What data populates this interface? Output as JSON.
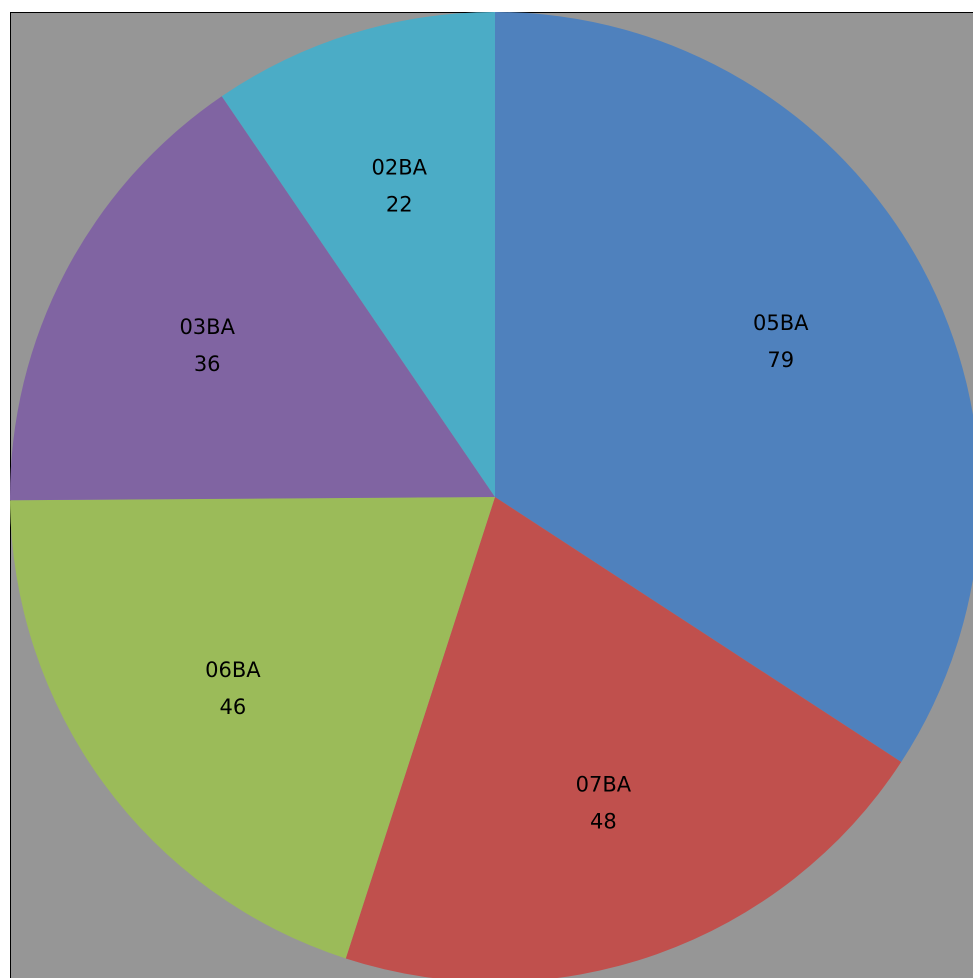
{
  "chart_data": {
    "type": "pie",
    "categories": [
      "05BA",
      "07BA",
      "06BA",
      "03BA",
      "02BA"
    ],
    "values": [
      79,
      48,
      46,
      36,
      22
    ],
    "colors": [
      "#4f81bd",
      "#c0504d",
      "#9bbb59",
      "#8064a2",
      "#4bacc6"
    ]
  }
}
